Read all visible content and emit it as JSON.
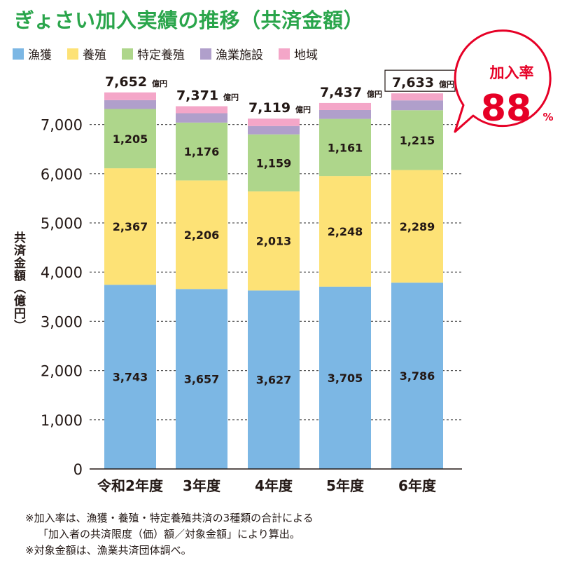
{
  "title": "ぎょさい加入実績の推移（共済金額）",
  "ylabel": "共済金額（億円）",
  "unit": "億円",
  "callout": {
    "label": "加入率",
    "value": "88",
    "unit": "%"
  },
  "notes": [
    "※加入率は、漁獲・養殖・特定養殖共済の3種類の合計による",
    "「加入者の共済限度（価）額／対象金額」により算出。",
    "※対象金額は、漁業共済団体調べ。"
  ],
  "chart_data": {
    "type": "bar",
    "stacked": true,
    "categories": [
      "令和2年度",
      "3年度",
      "4年度",
      "5年度",
      "6年度"
    ],
    "series": [
      {
        "name": "漁獲",
        "color": "#7cb7e4",
        "values": [
          3743,
          3657,
          3627,
          3705,
          3786
        ],
        "labels": [
          "3,743",
          "3,657",
          "3,627",
          "3,705",
          "3,786"
        ]
      },
      {
        "name": "養殖",
        "color": "#fde276",
        "values": [
          2367,
          2206,
          2013,
          2248,
          2289
        ],
        "labels": [
          "2,367",
          "2,206",
          "2,013",
          "2,248",
          "2,289"
        ]
      },
      {
        "name": "特定養殖",
        "color": "#aed68b",
        "values": [
          1205,
          1176,
          1159,
          1161,
          1215
        ],
        "labels": [
          "1,205",
          "1,176",
          "1,159",
          "1,161",
          "1,215"
        ]
      },
      {
        "name": "漁業施設",
        "color": "#b09fcb",
        "values": [
          180,
          190,
          170,
          180,
          200
        ]
      },
      {
        "name": "地域",
        "color": "#f4a6c8",
        "values": [
          157,
          142,
          150,
          143,
          143
        ]
      }
    ],
    "totals": [
      "7,652",
      "7,371",
      "7,119",
      "7,437",
      "7,633"
    ],
    "ylim": [
      0,
      7700
    ],
    "yticks": [
      0,
      1000,
      2000,
      3000,
      4000,
      5000,
      6000,
      7000
    ],
    "ytick_labels": [
      "0",
      "1,000",
      "2,000",
      "3,000",
      "4,000",
      "5,000",
      "6,000",
      "7,000"
    ],
    "grid": true,
    "legend": "top-left"
  }
}
